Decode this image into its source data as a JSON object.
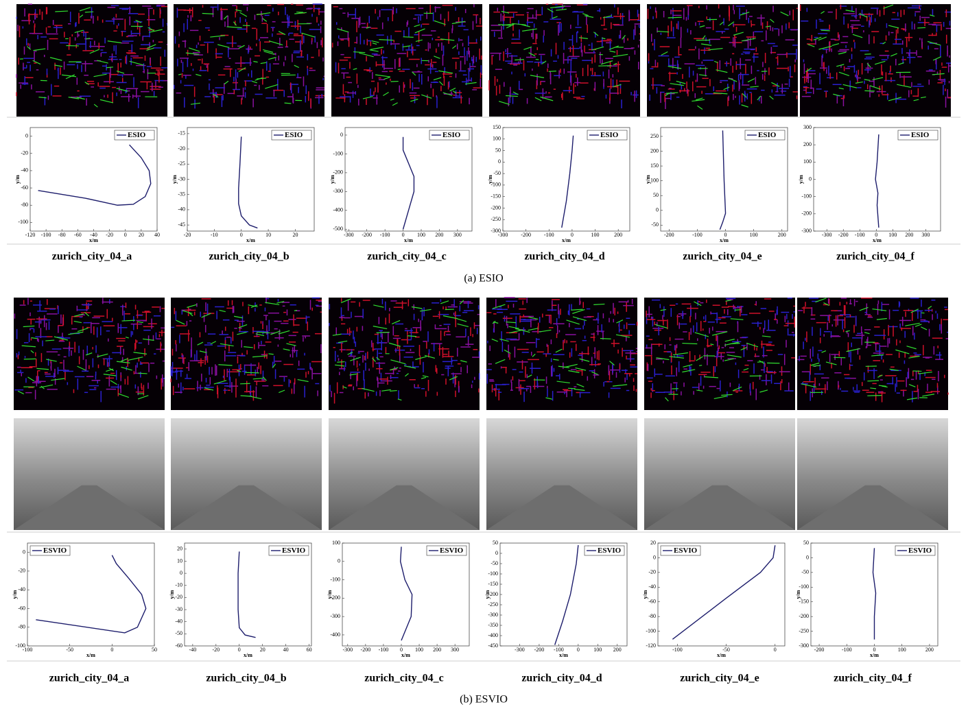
{
  "figure": {
    "captions": [
      "(a) ESIO",
      "(b) ESVIO"
    ]
  },
  "chart_data": [
    {
      "type": "line",
      "title": "zurich_city_04_a",
      "xlabel": "x/m",
      "ylabel": "y/m",
      "legend": "upper right",
      "xlim": [
        -120,
        40
      ],
      "xticks": [
        -120,
        -100,
        -80,
        -60,
        -40,
        -20,
        0,
        20,
        40
      ],
      "ylim": [
        -110,
        10
      ],
      "yticks": [
        -100,
        -80,
        -60,
        -40,
        -20,
        0
      ],
      "series": [
        {
          "name": "ESIO",
          "color": "#1c1c6b",
          "x": [
            5,
            20,
            30,
            32,
            25,
            10,
            -10,
            -50,
            -110
          ],
          "y": [
            -10,
            -25,
            -40,
            -55,
            -70,
            -79,
            -80,
            -72,
            -63
          ]
        }
      ]
    },
    {
      "type": "line",
      "title": "zurich_city_04_b",
      "xlabel": "x/m",
      "ylabel": "y/m",
      "legend": "upper right",
      "xlim": [
        -20,
        27
      ],
      "xticks": [
        -20,
        -10,
        0,
        10,
        20
      ],
      "ylim": [
        -47,
        -13
      ],
      "yticks": [
        -45,
        -40,
        -35,
        -30,
        -25,
        -20,
        -15
      ],
      "series": [
        {
          "name": "ESIO",
          "color": "#1c1c6b",
          "x": [
            0,
            -0.5,
            -1,
            -1,
            0,
            3,
            6
          ],
          "y": [
            -16,
            -25,
            -33,
            -38,
            -42,
            -45,
            -46
          ]
        }
      ]
    },
    {
      "type": "line",
      "title": "zurich_city_04_c",
      "xlabel": "x/m",
      "ylabel": "y/m",
      "legend": "upper right",
      "xlim": [
        -320,
        380
      ],
      "xticks": [
        -300,
        -200,
        -100,
        0,
        100,
        200,
        300
      ],
      "ylim": [
        -510,
        40
      ],
      "yticks": [
        -500,
        -400,
        -300,
        -200,
        -100,
        0
      ],
      "series": [
        {
          "name": "ESIO",
          "color": "#1c1c6b",
          "x": [
            0,
            0,
            30,
            60,
            60,
            30,
            0
          ],
          "y": [
            -10,
            -80,
            -150,
            -220,
            -300,
            -400,
            -500
          ]
        }
      ]
    },
    {
      "type": "line",
      "title": "zurich_city_04_d",
      "xlabel": "x/m",
      "ylabel": "y/m",
      "legend": "upper right",
      "xlim": [
        -300,
        250
      ],
      "xticks": [
        -300,
        -200,
        -100,
        0,
        100,
        200
      ],
      "ylim": [
        -300,
        150
      ],
      "yticks": [
        -300,
        -250,
        -200,
        -150,
        -100,
        -50,
        0,
        50,
        100,
        150
      ],
      "series": [
        {
          "name": "ESIO",
          "color": "#1c1c6b",
          "x": [
            5,
            0,
            -10,
            -25,
            -45
          ],
          "y": [
            115,
            50,
            -50,
            -170,
            -285
          ]
        }
      ]
    },
    {
      "type": "line",
      "title": "zurich_city_04_e",
      "xlabel": "x/m",
      "ylabel": "y/m",
      "legend": "upper right",
      "xlim": [
        -230,
        220
      ],
      "xticks": [
        -200,
        -100,
        0,
        100,
        200
      ],
      "ylim": [
        -70,
        280
      ],
      "yticks": [
        -50,
        0,
        50,
        100,
        150,
        200,
        250
      ],
      "series": [
        {
          "name": "ESIO",
          "color": "#1c1c6b",
          "x": [
            -10,
            -5,
            0,
            -10,
            -20
          ],
          "y": [
            270,
            100,
            -10,
            -40,
            -65
          ]
        }
      ]
    },
    {
      "type": "line",
      "title": "zurich_city_04_f",
      "xlabel": "x/m",
      "ylabel": "y/m",
      "legend": "upper right",
      "xlim": [
        -380,
        390
      ],
      "xticks": [
        -300,
        -200,
        -100,
        0,
        100,
        200,
        300
      ],
      "ylim": [
        -300,
        300
      ],
      "yticks": [
        -300,
        -200,
        -100,
        0,
        100,
        200,
        300
      ],
      "series": [
        {
          "name": "ESIO",
          "color": "#1c1c6b",
          "x": [
            15,
            5,
            -5,
            10,
            5,
            15
          ],
          "y": [
            260,
            100,
            0,
            -80,
            -150,
            -280
          ]
        }
      ]
    },
    {
      "type": "line",
      "title": "zurich_city_04_a",
      "xlabel": "x/m",
      "ylabel": "y/m",
      "legend": "upper left",
      "xlim": [
        -100,
        50
      ],
      "xticks": [
        -100,
        -50,
        0,
        50
      ],
      "ylim": [
        -100,
        10
      ],
      "yticks": [
        -100,
        -80,
        -60,
        -40,
        -20,
        0
      ],
      "series": [
        {
          "name": "ESVIO",
          "color": "#1c1c6b",
          "x": [
            0,
            5,
            20,
            35,
            40,
            30,
            15,
            -90
          ],
          "y": [
            -3,
            -12,
            -28,
            -45,
            -60,
            -80,
            -86,
            -72
          ]
        }
      ]
    },
    {
      "type": "line",
      "title": "zurich_city_04_b",
      "xlabel": "x/m",
      "ylabel": "y/m",
      "legend": "upper right",
      "xlim": [
        -47,
        62
      ],
      "xticks": [
        -40,
        -20,
        0,
        20,
        40,
        60
      ],
      "ylim": [
        -60,
        25
      ],
      "yticks": [
        -60,
        -50,
        -40,
        -30,
        -20,
        -10,
        0,
        10,
        20
      ],
      "series": [
        {
          "name": "ESVIO",
          "color": "#1c1c6b",
          "x": [
            0,
            -1,
            -1,
            0,
            5,
            14
          ],
          "y": [
            18,
            0,
            -30,
            -45,
            -51,
            -53
          ]
        }
      ]
    },
    {
      "type": "line",
      "title": "zurich_city_04_c",
      "xlabel": "x/m",
      "ylabel": "y/m",
      "legend": "upper right",
      "xlim": [
        -330,
        380
      ],
      "xticks": [
        -300,
        -200,
        -100,
        0,
        100,
        200,
        300
      ],
      "ylim": [
        -460,
        100
      ],
      "yticks": [
        -400,
        -300,
        -200,
        -100,
        0,
        100
      ],
      "series": [
        {
          "name": "ESVIO",
          "color": "#1c1c6b",
          "x": [
            0,
            -5,
            20,
            60,
            55,
            0
          ],
          "y": [
            80,
            0,
            -100,
            -180,
            -300,
            -430
          ]
        }
      ]
    },
    {
      "type": "line",
      "title": "zurich_city_04_d",
      "xlabel": "x/m",
      "ylabel": "y/m",
      "legend": "upper right",
      "xlim": [
        -400,
        250
      ],
      "xticks": [
        -300,
        -200,
        -100,
        0,
        100,
        200
      ],
      "ylim": [
        -450,
        50
      ],
      "yticks": [
        -450,
        -400,
        -350,
        -300,
        -250,
        -200,
        -150,
        -100,
        -50,
        0,
        50
      ],
      "series": [
        {
          "name": "ESVIO",
          "color": "#1c1c6b",
          "x": [
            0,
            -10,
            -40,
            -80,
            -120
          ],
          "y": [
            40,
            -50,
            -200,
            -330,
            -445
          ]
        }
      ]
    },
    {
      "type": "line",
      "title": "zurich_city_04_e",
      "xlabel": "x/m",
      "ylabel": "y/m",
      "legend": "upper left",
      "xlim": [
        -120,
        10
      ],
      "xticks": [
        -100,
        -50,
        0
      ],
      "ylim": [
        -120,
        20
      ],
      "yticks": [
        -120,
        -100,
        -80,
        -60,
        -40,
        -20,
        0,
        20
      ],
      "series": [
        {
          "name": "ESVIO",
          "color": "#1c1c6b",
          "x": [
            0,
            -2,
            -15,
            -50,
            -105
          ],
          "y": [
            17,
            0,
            -20,
            -55,
            -111
          ]
        }
      ]
    },
    {
      "type": "line",
      "title": "zurich_city_04_f",
      "xlabel": "x/m",
      "ylabel": "y/m",
      "legend": "upper right",
      "xlim": [
        -230,
        230
      ],
      "xticks": [
        -200,
        -100,
        0,
        100,
        200
      ],
      "ylim": [
        -300,
        50
      ],
      "yticks": [
        -300,
        -250,
        -200,
        -150,
        -100,
        -50,
        0,
        50
      ],
      "series": [
        {
          "name": "ESVIO",
          "color": "#1c1c6b",
          "x": [
            0,
            -5,
            5,
            0,
            0
          ],
          "y": [
            33,
            -50,
            -120,
            -200,
            -278
          ]
        }
      ]
    }
  ]
}
